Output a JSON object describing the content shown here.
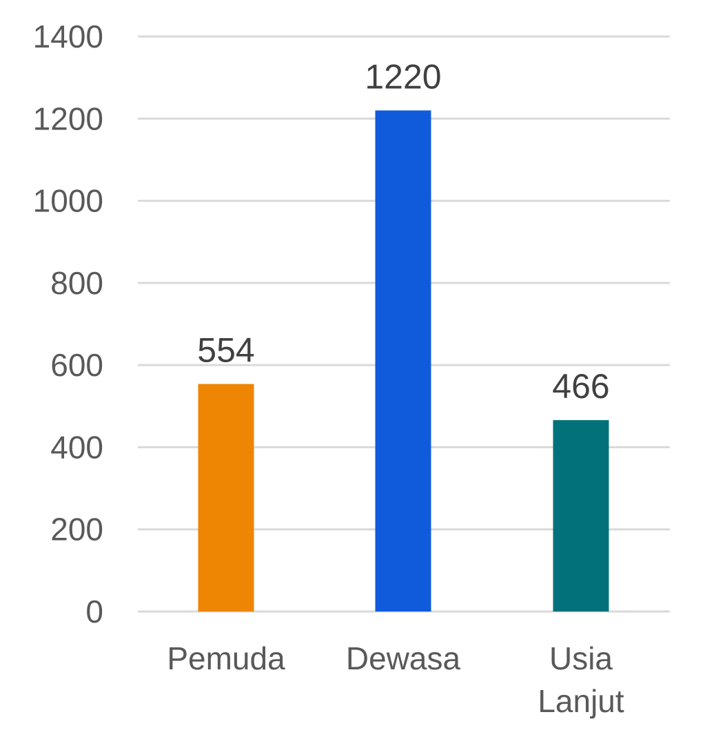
{
  "chart_data": {
    "type": "bar",
    "title": "",
    "xlabel": "",
    "ylabel": "",
    "categories": [
      "Pemuda",
      "Dewasa",
      "Usia Lanjut"
    ],
    "category_lines": [
      [
        "Pemuda"
      ],
      [
        "Dewasa"
      ],
      [
        "Usia",
        "Lanjut"
      ]
    ],
    "values": [
      554,
      1220,
      466
    ],
    "data_labels": [
      "554",
      "1220",
      "466"
    ],
    "colors": [
      "#ee8503",
      "#0f5bdb",
      "#03717a"
    ],
    "ylim": [
      0,
      1400
    ],
    "yticks": [
      0,
      200,
      400,
      600,
      800,
      1000,
      1200,
      1400
    ],
    "ytick_labels": [
      "0",
      "200",
      "400",
      "600",
      "800",
      "1000",
      "1200",
      "1400"
    ],
    "grid": true,
    "legend": "none",
    "gridline_color": "#d9d9d9",
    "text_color": "#595959",
    "data_label_color": "#404040"
  }
}
